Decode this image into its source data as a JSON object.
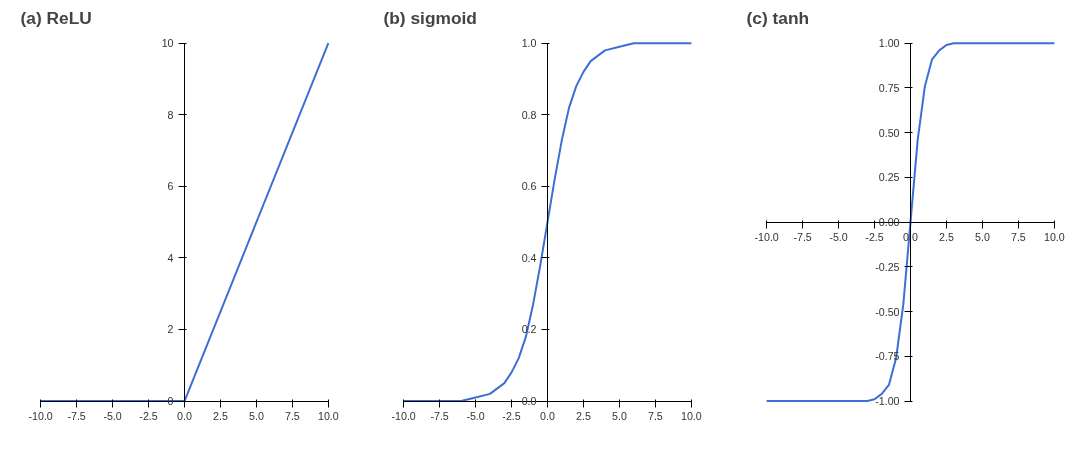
{
  "chart_data": [
    {
      "type": "line",
      "title": "(a) ReLU",
      "x": [
        -10,
        0,
        10
      ],
      "series": [
        {
          "color": "#3b6fd6",
          "values": [
            0,
            0,
            10
          ]
        }
      ],
      "xlim": [
        -10,
        10
      ],
      "ylim": [
        0,
        10
      ],
      "xticks": [
        {
          "value": -10,
          "label": "-10.0"
        },
        {
          "value": -7.5,
          "label": "-7.5"
        },
        {
          "value": -5,
          "label": "-5.0"
        },
        {
          "value": -2.5,
          "label": "-2.5"
        },
        {
          "value": 0,
          "label": "0.0"
        },
        {
          "value": 2.5,
          "label": "2.5"
        },
        {
          "value": 5,
          "label": "5.0"
        },
        {
          "value": 7.5,
          "label": "7.5"
        },
        {
          "value": 10,
          "label": "10.0"
        }
      ],
      "yticks": [
        0,
        2,
        4,
        6,
        8,
        10
      ],
      "grid": false
    },
    {
      "type": "line",
      "title": "(b) sigmoid",
      "x": [
        -10,
        -8,
        -6,
        -5,
        -4,
        -3,
        -2.5,
        -2,
        -1.5,
        -1,
        -0.5,
        0,
        0.5,
        1,
        1.5,
        2,
        2.5,
        3,
        4,
        5,
        6,
        8,
        10
      ],
      "series": [
        {
          "color": "#3b6fd6",
          "values": [
            0,
            0,
            0,
            0.01,
            0.02,
            0.05,
            0.08,
            0.12,
            0.18,
            0.27,
            0.38,
            0.5,
            0.62,
            0.73,
            0.82,
            0.88,
            0.92,
            0.95,
            0.98,
            0.99,
            1,
            1,
            1
          ]
        }
      ],
      "xlim": [
        -10,
        10
      ],
      "ylim": [
        0,
        1
      ],
      "xticks": [
        {
          "value": -10,
          "label": "-10.0"
        },
        {
          "value": -7.5,
          "label": "-7.5"
        },
        {
          "value": -5,
          "label": "-5.0"
        },
        {
          "value": -2.5,
          "label": "-2.5"
        },
        {
          "value": 0,
          "label": "0.0"
        },
        {
          "value": 2.5,
          "label": "2.5"
        },
        {
          "value": 5,
          "label": "5.0"
        },
        {
          "value": 7.5,
          "label": "7.5"
        },
        {
          "value": 10,
          "label": "10.0"
        }
      ],
      "yticks": [
        {
          "value": 0,
          "label": "0.0"
        },
        {
          "value": 0.2,
          "label": "0.2"
        },
        {
          "value": 0.4,
          "label": "0.4"
        },
        {
          "value": 0.6,
          "label": "0.6"
        },
        {
          "value": 0.8,
          "label": "0.8"
        },
        {
          "value": 1,
          "label": "1.0"
        }
      ],
      "grid": false
    },
    {
      "type": "line",
      "title": "(c) tanh",
      "x": [
        -10,
        -4,
        -3,
        -2.5,
        -2,
        -1.5,
        -1,
        -0.5,
        0,
        0.5,
        1,
        1.5,
        2,
        2.5,
        3,
        4,
        10
      ],
      "series": [
        {
          "color": "#3b6fd6",
          "values": [
            -1,
            -1,
            -1,
            -0.99,
            -0.96,
            -0.91,
            -0.76,
            -0.46,
            0,
            0.46,
            0.76,
            0.91,
            0.96,
            0.99,
            1,
            1,
            1
          ]
        }
      ],
      "xlim": [
        -10,
        10
      ],
      "ylim": [
        -1,
        1
      ],
      "xticks": [
        {
          "value": -10,
          "label": "-10.0"
        },
        {
          "value": -7.5,
          "label": "-7.5"
        },
        {
          "value": -5,
          "label": "-5.0"
        },
        {
          "value": -2.5,
          "label": "-2.5"
        },
        {
          "value": 0,
          "label": "0.0"
        },
        {
          "value": 2.5,
          "label": "2.5"
        },
        {
          "value": 5,
          "label": "5.0"
        },
        {
          "value": 7.5,
          "label": "7.5"
        },
        {
          "value": 10,
          "label": "10.0"
        }
      ],
      "yticks": [
        {
          "value": -1,
          "label": "-1.00"
        },
        {
          "value": -0.75,
          "label": "-0.75"
        },
        {
          "value": -0.5,
          "label": "-0.50"
        },
        {
          "value": -0.25,
          "label": "-0.25"
        },
        {
          "value": 0,
          "label": "0.00"
        },
        {
          "value": 0.25,
          "label": "0.25"
        },
        {
          "value": 0.5,
          "label": "0.50"
        },
        {
          "value": 0.75,
          "label": "0.75"
        },
        {
          "value": 1,
          "label": "1.00"
        }
      ],
      "grid": false
    }
  ]
}
